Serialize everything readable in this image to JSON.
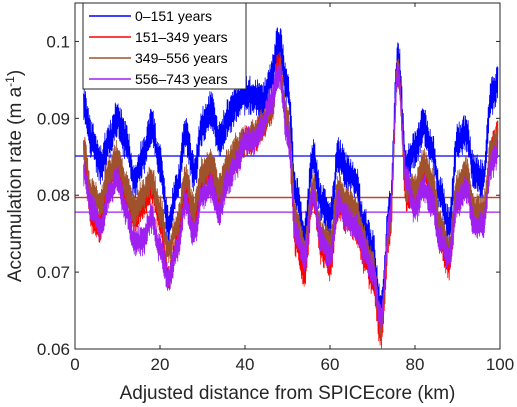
{
  "chart_data": {
    "type": "line",
    "xlabel": "Adjusted distance from SPICEcore (km)",
    "ylabel": "Accumulation rate (m a-1)",
    "ylabel_main": "Accumulation rate (m a",
    "ylabel_sup": "-1",
    "ylabel_close": ")",
    "xlim": [
      0,
      100
    ],
    "ylim": [
      0.06,
      0.105
    ],
    "x_ticks": [
      0,
      20,
      40,
      60,
      80,
      100
    ],
    "x_tick_labels": [
      "0",
      "20",
      "40",
      "60",
      "80",
      "100"
    ],
    "y_ticks": [
      0.06,
      0.07,
      0.08,
      0.09,
      0.1
    ],
    "y_tick_labels": [
      "0.06",
      "0.07",
      "0.08",
      "0.09",
      "0.1"
    ],
    "grid": false,
    "legend_position": "top-left",
    "series": [
      {
        "name": "0–151 years",
        "color": "#0000ff",
        "band": 0.0026,
        "mean": 0.0851,
        "x": [
          0,
          2,
          4,
          6,
          8,
          10,
          12,
          14,
          16,
          18,
          20,
          22,
          24,
          26,
          28,
          30,
          32,
          34,
          36,
          38,
          40,
          42,
          44,
          46,
          48,
          50,
          52,
          54,
          56,
          58,
          60,
          62,
          64,
          66,
          68,
          70,
          72,
          74,
          76,
          78,
          80,
          82,
          84,
          86,
          88,
          90,
          92,
          94,
          96,
          98,
          100
        ],
        "y": [
          0.092,
          0.092,
          0.087,
          0.084,
          0.087,
          0.09,
          0.087,
          0.082,
          0.085,
          0.089,
          0.084,
          0.076,
          0.081,
          0.088,
          0.083,
          0.089,
          0.091,
          0.087,
          0.09,
          0.092,
          0.093,
          0.093,
          0.092,
          0.095,
          0.1,
          0.094,
          0.08,
          0.075,
          0.085,
          0.079,
          0.077,
          0.085,
          0.083,
          0.082,
          0.076,
          0.073,
          0.065,
          0.078,
          0.098,
          0.084,
          0.086,
          0.089,
          0.086,
          0.08,
          0.076,
          0.087,
          0.088,
          0.083,
          0.082,
          0.093,
          0.095
        ]
      },
      {
        "name": "151–349 years",
        "color": "#ff0000",
        "band": 0.0022,
        "mean": 0.0797,
        "x": [
          0,
          2,
          4,
          6,
          8,
          10,
          12,
          14,
          16,
          18,
          20,
          22,
          24,
          26,
          28,
          30,
          32,
          34,
          36,
          38,
          40,
          42,
          44,
          46,
          48,
          50,
          52,
          54,
          56,
          58,
          60,
          62,
          64,
          66,
          68,
          70,
          72,
          74,
          76,
          78,
          80,
          82,
          84,
          86,
          88,
          90,
          92,
          94,
          96,
          98,
          100
        ],
        "y": [
          0.086,
          0.086,
          0.077,
          0.076,
          0.082,
          0.084,
          0.08,
          0.077,
          0.079,
          0.081,
          0.077,
          0.069,
          0.074,
          0.081,
          0.077,
          0.082,
          0.083,
          0.08,
          0.083,
          0.085,
          0.087,
          0.087,
          0.089,
          0.091,
          0.097,
          0.089,
          0.074,
          0.07,
          0.08,
          0.073,
          0.071,
          0.079,
          0.077,
          0.076,
          0.072,
          0.069,
          0.062,
          0.075,
          0.096,
          0.08,
          0.08,
          0.083,
          0.081,
          0.074,
          0.071,
          0.08,
          0.082,
          0.077,
          0.077,
          0.086,
          0.088
        ]
      },
      {
        "name": "349–556 years",
        "color": "#a0522d",
        "band": 0.0022,
        "mean": 0.0797,
        "x": [
          0,
          2,
          4,
          6,
          8,
          10,
          12,
          14,
          16,
          18,
          20,
          22,
          24,
          26,
          28,
          30,
          32,
          34,
          36,
          38,
          40,
          42,
          44,
          46,
          48,
          50,
          52,
          54,
          56,
          58,
          60,
          62,
          64,
          66,
          68,
          70,
          72,
          74,
          76,
          78,
          80,
          82,
          84,
          86,
          88,
          90,
          92,
          94,
          96,
          98,
          100
        ],
        "y": [
          0.086,
          0.086,
          0.08,
          0.079,
          0.083,
          0.085,
          0.081,
          0.078,
          0.08,
          0.082,
          0.078,
          0.073,
          0.076,
          0.082,
          0.078,
          0.083,
          0.084,
          0.081,
          0.084,
          0.086,
          0.087,
          0.088,
          0.089,
          0.091,
          0.096,
          0.09,
          0.077,
          0.073,
          0.081,
          0.075,
          0.074,
          0.081,
          0.079,
          0.078,
          0.074,
          0.071,
          0.063,
          0.076,
          0.096,
          0.081,
          0.081,
          0.084,
          0.082,
          0.076,
          0.073,
          0.081,
          0.083,
          0.078,
          0.078,
          0.086,
          0.088
        ]
      },
      {
        "name": "556–743 years",
        "color": "#a020f0",
        "band": 0.002,
        "mean": 0.0778,
        "x": [
          0,
          2,
          4,
          6,
          8,
          10,
          12,
          14,
          16,
          18,
          20,
          22,
          24,
          26,
          28,
          30,
          32,
          34,
          36,
          38,
          40,
          42,
          44,
          46,
          48,
          50,
          52,
          54,
          56,
          58,
          60,
          62,
          64,
          66,
          68,
          70,
          72,
          74,
          76,
          78,
          80,
          82,
          84,
          86,
          88,
          90,
          92,
          94,
          96,
          98,
          100
        ],
        "y": [
          0.084,
          0.083,
          0.078,
          0.076,
          0.08,
          0.082,
          0.078,
          0.074,
          0.074,
          0.077,
          0.073,
          0.069,
          0.073,
          0.079,
          0.075,
          0.08,
          0.081,
          0.078,
          0.082,
          0.084,
          0.087,
          0.087,
          0.089,
          0.092,
          0.096,
          0.088,
          0.075,
          0.072,
          0.08,
          0.074,
          0.072,
          0.079,
          0.077,
          0.076,
          0.073,
          0.07,
          0.064,
          0.077,
          0.096,
          0.082,
          0.078,
          0.081,
          0.079,
          0.074,
          0.072,
          0.079,
          0.081,
          0.076,
          0.076,
          0.084,
          0.086
        ]
      }
    ]
  }
}
